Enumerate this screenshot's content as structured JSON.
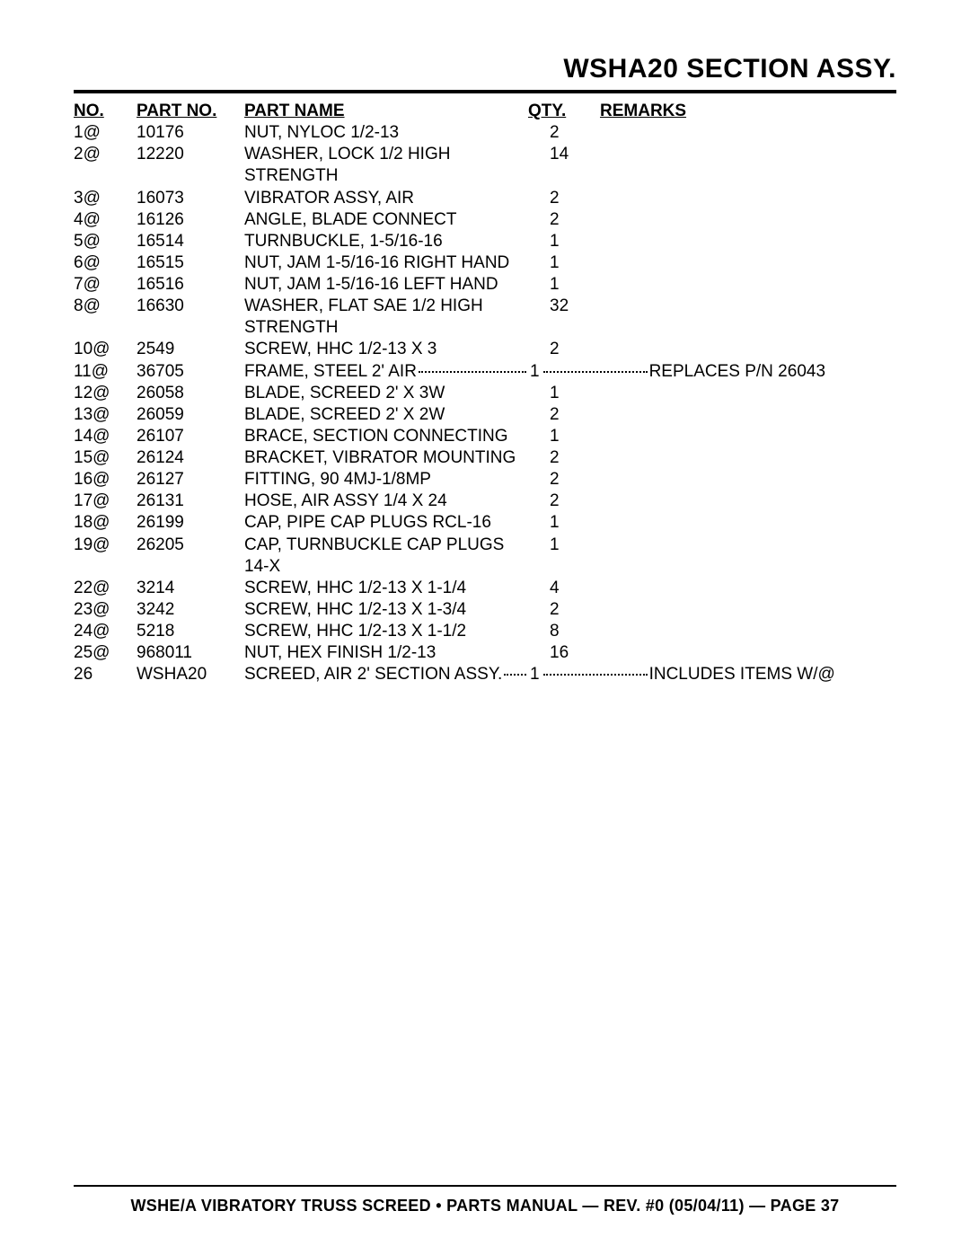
{
  "title": "WSHA20 SECTION ASSY.",
  "columns": {
    "no": "NO.",
    "partno": "PART NO.",
    "name": "PART NAME",
    "qty": "QTY.",
    "remarks": "REMARKS"
  },
  "rows": [
    {
      "no": "1@",
      "partno": "10176",
      "name": "NUT, NYLOC 1/2-13",
      "qty": "2",
      "remarks": ""
    },
    {
      "no": "2@",
      "partno": "12220",
      "name": "WASHER, LOCK 1/2 HIGH STRENGTH",
      "qty": "14",
      "remarks": ""
    },
    {
      "no": "3@",
      "partno": "16073",
      "name": "VIBRATOR ASSY, AIR",
      "qty": "2",
      "remarks": ""
    },
    {
      "no": "4@",
      "partno": "16126",
      "name": "ANGLE, BLADE CONNECT",
      "qty": "2",
      "remarks": ""
    },
    {
      "no": "5@",
      "partno": "16514",
      "name": "TURNBUCKLE, 1-5/16-16",
      "qty": "1",
      "remarks": ""
    },
    {
      "no": "6@",
      "partno": "16515",
      "name": "NUT, JAM 1-5/16-16 RIGHT HAND",
      "qty": "1",
      "remarks": ""
    },
    {
      "no": "7@",
      "partno": "16516",
      "name": "NUT, JAM 1-5/16-16 LEFT HAND",
      "qty": "1",
      "remarks": ""
    },
    {
      "no": "8@",
      "partno": "16630",
      "name": "WASHER, FLAT SAE 1/2 HIGH STRENGTH",
      "qty": "32",
      "remarks": ""
    },
    {
      "no": "10@",
      "partno": "2549",
      "name": "SCREW, HHC 1/2-13 X 3",
      "qty": "2",
      "remarks": ""
    },
    {
      "no": "11@",
      "partno": "36705",
      "name": "FRAME, STEEL 2' AIR",
      "qty": "1",
      "remarks": "REPLACES P/N 26043",
      "leader": true
    },
    {
      "no": "12@",
      "partno": "26058",
      "name": "BLADE, SCREED 2' X 3W",
      "qty": "1",
      "remarks": ""
    },
    {
      "no": "13@",
      "partno": "26059",
      "name": "BLADE, SCREED 2' X 2W",
      "qty": "2",
      "remarks": ""
    },
    {
      "no": "14@",
      "partno": "26107",
      "name": "BRACE, SECTION CONNECTING",
      "qty": "1",
      "remarks": ""
    },
    {
      "no": "15@",
      "partno": "26124",
      "name": "BRACKET, VIBRATOR MOUNTING",
      "qty": "2",
      "remarks": ""
    },
    {
      "no": "16@",
      "partno": "26127",
      "name": "FITTING, 90 4MJ-1/8MP",
      "qty": "2",
      "remarks": ""
    },
    {
      "no": "17@",
      "partno": "26131",
      "name": "HOSE, AIR ASSY 1/4 X 24",
      "qty": "2",
      "remarks": ""
    },
    {
      "no": "18@",
      "partno": "26199",
      "name": "CAP, PIPE CAP PLUGS RCL-16",
      "qty": "1",
      "remarks": ""
    },
    {
      "no": "19@",
      "partno": "26205",
      "name": "CAP, TURNBUCKLE CAP PLUGS 14-X",
      "qty": "1",
      "remarks": ""
    },
    {
      "no": "22@",
      "partno": "3214",
      "name": "SCREW, HHC 1/2-13 X 1-1/4",
      "qty": "4",
      "remarks": ""
    },
    {
      "no": "23@",
      "partno": "3242",
      "name": "SCREW, HHC 1/2-13 X 1-3/4",
      "qty": "2",
      "remarks": ""
    },
    {
      "no": "24@",
      "partno": "5218",
      "name": "SCREW, HHC 1/2-13 X 1-1/2",
      "qty": "8",
      "remarks": ""
    },
    {
      "no": "25@",
      "partno": "968011",
      "name": "NUT, HEX FINISH 1/2-13",
      "qty": "16",
      "remarks": ""
    },
    {
      "no": "26",
      "partno": "WSHA20",
      "name": "SCREED, AIR 2' SECTION ASSY.",
      "qty": "1",
      "remarks": "INCLUDES ITEMS W/@",
      "leader": true
    }
  ],
  "footer": "WSHE/A VIBRATORY TRUSS SCREED • PARTS MANUAL — REV. #0 (05/04/11) — PAGE 37"
}
